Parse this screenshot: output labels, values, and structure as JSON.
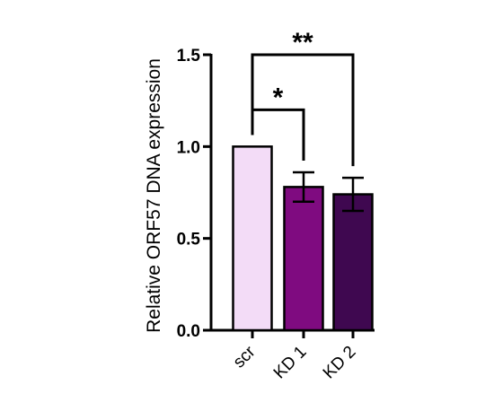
{
  "chart_data": {
    "type": "bar",
    "title": "",
    "xlabel": "",
    "ylabel": "Relative ORF57 DNA expression",
    "ylim": [
      0,
      1.5
    ],
    "yticks": [
      "0.0",
      "0.5",
      "1.0",
      "1.5"
    ],
    "grid": false,
    "categories": [
      "scr",
      "KD 1",
      "KD 2"
    ],
    "values": [
      1.0,
      0.78,
      0.74
    ],
    "error": [
      0,
      0.08,
      0.09
    ],
    "colors": [
      "#f3dcf7",
      "#7f0b80",
      "#3f0850"
    ],
    "annotations": [
      {
        "from": "scr",
        "to": "KD 1",
        "label": "*",
        "level": 1.2
      },
      {
        "from": "scr",
        "to": "KD 2",
        "label": "**",
        "level": 1.5
      }
    ]
  }
}
